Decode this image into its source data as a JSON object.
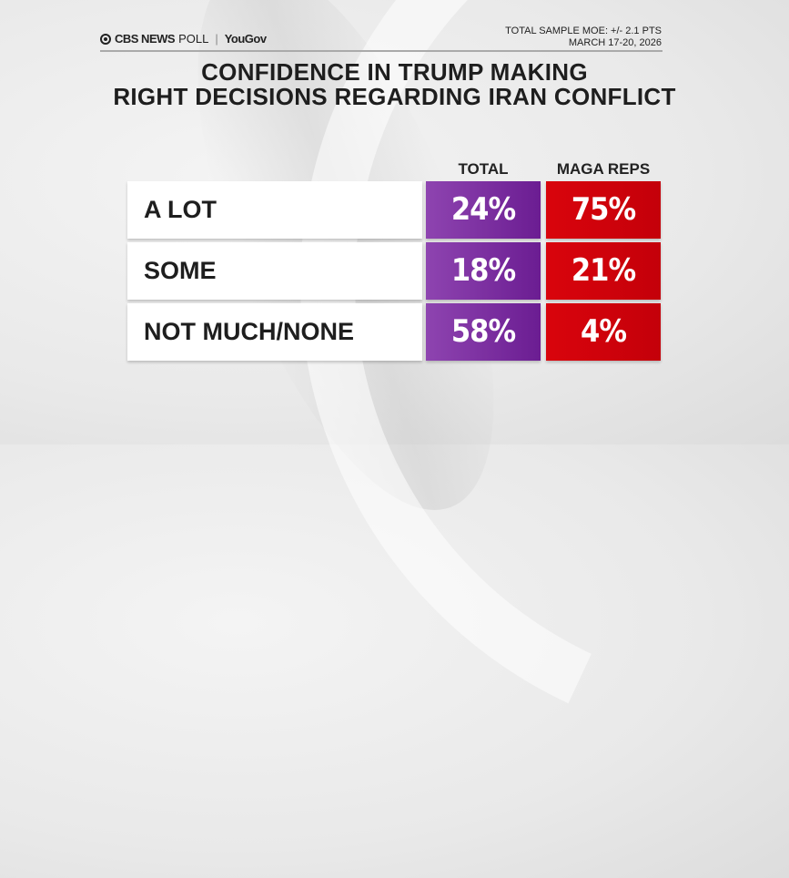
{
  "header": {
    "brand": "CBS NEWS",
    "brand_suffix": "POLL",
    "partner": "YouGov",
    "moe": "TOTAL SAMPLE MOE: +/- 2.1 PTS",
    "dates": "MARCH 17-20, 2026"
  },
  "chart_data": {
    "type": "table",
    "title_line1": "CONFIDENCE IN TRUMP MAKING",
    "title_line2": "RIGHT DECISIONS REGARDING IRAN CONFLICT",
    "columns": [
      "TOTAL",
      "MAGA REPS"
    ],
    "rows": [
      {
        "label": "A LOT",
        "values": [
          "24%",
          "75%"
        ]
      },
      {
        "label": "SOME",
        "values": [
          "18%",
          "21%"
        ]
      },
      {
        "label": "NOT MUCH/NONE",
        "values": [
          "58%",
          "4%"
        ]
      }
    ],
    "colors": {
      "total": "#7b2fa3",
      "maga_reps": "#d0020b"
    }
  }
}
